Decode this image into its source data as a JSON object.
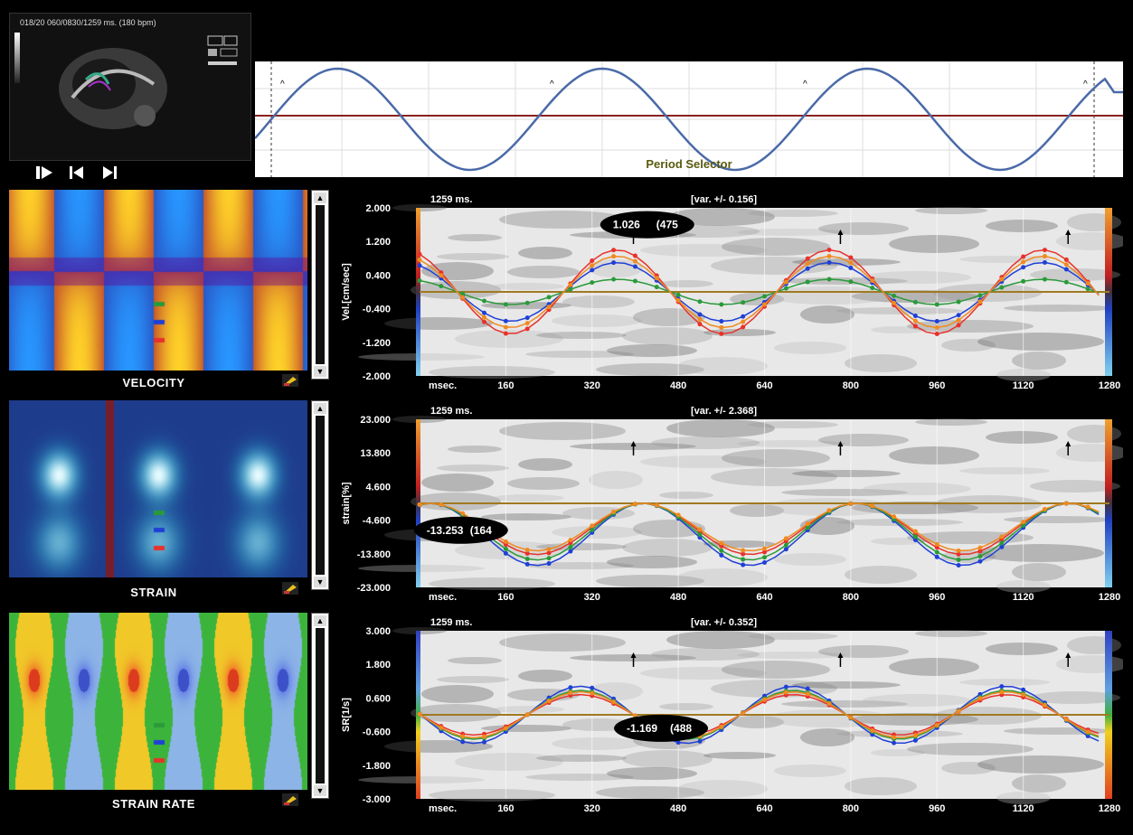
{
  "thumbnail": {
    "header": "018/20 060/0830/1259 ms. (180 bpm)"
  },
  "controls": [
    {
      "name": "play-button",
      "icon": "play-icon"
    },
    {
      "name": "prev-frame-button",
      "icon": "step-back-icon"
    },
    {
      "name": "next-frame-button",
      "icon": "step-forward-icon"
    }
  ],
  "period_selector": {
    "label": "Period Selector"
  },
  "panels": [
    {
      "id": "velocity",
      "label": "VELOCITY",
      "header_ms": "1259 ms.",
      "header_var": "[var. +/- 0.156]",
      "ylabel": "Vel.[cm/sec]",
      "yticks": [
        "2.000",
        "1.200",
        "0.400",
        "-0.400",
        "-1.200",
        "-2.000"
      ],
      "bubble_value": "1.026",
      "bubble_extra": "(475",
      "xticks": [
        "msec.",
        "160",
        "320",
        "480",
        "640",
        "800",
        "960",
        "1120",
        "1280"
      ]
    },
    {
      "id": "strain",
      "label": "STRAIN",
      "header_ms": "1259 ms.",
      "header_var": "[var. +/- 2.368]",
      "ylabel": "strain[%]",
      "yticks": [
        "23.000",
        "13.800",
        "4.600",
        "-4.600",
        "-13.800",
        "-23.000"
      ],
      "bubble_value": "-13.253",
      "bubble_extra": "(164",
      "xticks": [
        "msec.",
        "160",
        "320",
        "480",
        "640",
        "800",
        "960",
        "1120",
        "1280"
      ]
    },
    {
      "id": "strain-rate",
      "label": "STRAIN RATE",
      "header_ms": "1259 ms.",
      "header_var": "[var. +/- 0.352]",
      "ylabel": "SR[1/s]",
      "yticks": [
        "3.000",
        "1.800",
        "0.600",
        "-0.600",
        "-1.800",
        "-3.000"
      ],
      "bubble_value": "-1.169",
      "bubble_extra": "(488",
      "xticks": [
        "msec.",
        "160",
        "320",
        "480",
        "640",
        "800",
        "960",
        "1120",
        "1280"
      ]
    }
  ],
  "colors": {
    "red_series": "#e8312a",
    "blue_series": "#1f3fd6",
    "green_series": "#2a9a3a",
    "orange_series": "#f08a20",
    "baseline": "#a07a20",
    "period_curve": "#4a6aa8",
    "period_baseline": "#8a2020"
  }
}
